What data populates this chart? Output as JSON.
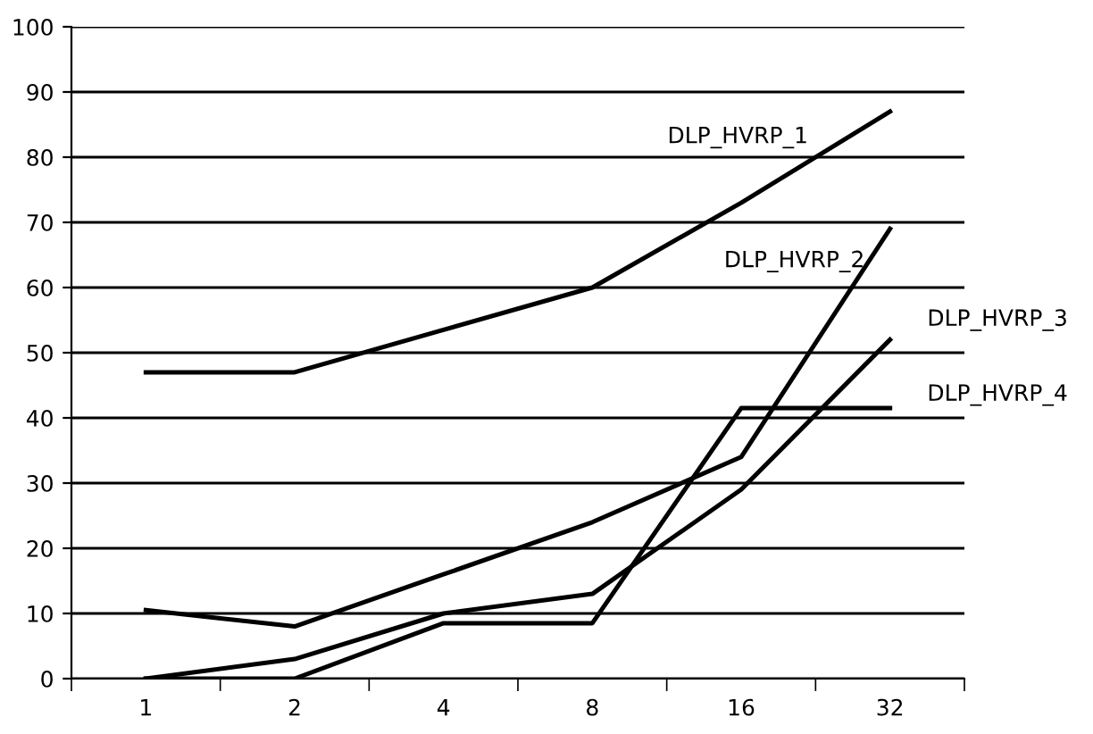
{
  "chart_data": {
    "type": "line",
    "categories": [
      "1",
      "2",
      "4",
      "8",
      "16",
      "32"
    ],
    "series": [
      {
        "name": "DLP_HVRP_1",
        "color": "#000000",
        "values": [
          47,
          47,
          53.5,
          60,
          73,
          87
        ]
      },
      {
        "name": "DLP_HVRP_2",
        "color": "#000000",
        "values": [
          10.5,
          8,
          16,
          24,
          34,
          69
        ]
      },
      {
        "name": "DLP_HVRP_3",
        "color": "#000000",
        "values": [
          0,
          3,
          10,
          13,
          29,
          52
        ]
      },
      {
        "name": "DLP_HVRP_4",
        "color": "#000000",
        "values": [
          0,
          0,
          8.5,
          8.5,
          41.5,
          41.5
        ]
      }
    ],
    "ylim": [
      0,
      100
    ],
    "yticks": [
      0,
      10,
      20,
      30,
      40,
      50,
      60,
      70,
      80,
      90,
      100
    ],
    "grid": "y",
    "marker": "none",
    "line_style": "solid",
    "legend": false
  }
}
